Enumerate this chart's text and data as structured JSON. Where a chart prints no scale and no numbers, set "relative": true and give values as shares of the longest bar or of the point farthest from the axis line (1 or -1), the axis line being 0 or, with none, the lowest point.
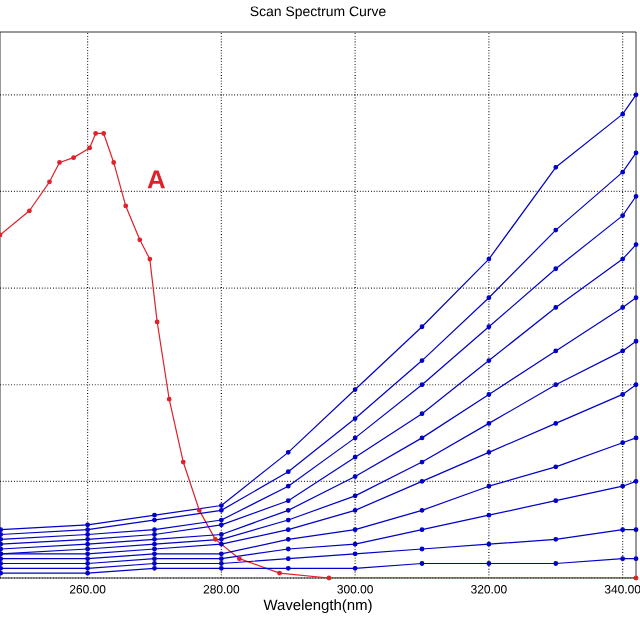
{
  "chart_data": {
    "type": "line",
    "title": "Scan Spectrum Curve",
    "xlabel": "Wavelength(nm)",
    "relative": true,
    "grid": true,
    "marker": "circle",
    "line_style": "solid",
    "xlim": [
      246.9,
      342
    ],
    "xticks": [
      {
        "value": 260,
        "label": "260.00"
      },
      {
        "value": 280,
        "label": "280.00"
      },
      {
        "value": 300,
        "label": "300.00"
      },
      {
        "value": 320,
        "label": "320.00"
      },
      {
        "value": 340,
        "label": "340.00"
      }
    ],
    "x": [
      247,
      260,
      270,
      280,
      290,
      300,
      310,
      320,
      330,
      340,
      342
    ],
    "annotations": [
      "A"
    ],
    "series": [
      {
        "color": "#e0202a",
        "x": [
          246.9,
          251.3,
          254.3,
          255.8,
          257.9,
          260.3,
          261.2,
          262.4,
          263.9,
          265.7,
          267.8,
          269.3,
          270.4,
          272.2,
          274.3,
          276.7,
          279.1,
          282.7,
          288.7,
          296.1,
          342
        ],
        "values": [
          0.71,
          0.76,
          0.82,
          0.86,
          0.87,
          0.89,
          0.92,
          0.92,
          0.86,
          0.77,
          0.7,
          0.66,
          0.53,
          0.37,
          0.24,
          0.14,
          0.08,
          0.04,
          0.01,
          0,
          0
        ]
      },
      {
        "color": "#0000c8",
        "values": [
          0.1,
          0.11,
          0.13,
          0.15,
          0.26,
          0.39,
          0.52,
          0.66,
          0.85,
          0.96,
          1.0
        ]
      },
      {
        "color": "#0000c8",
        "values": [
          0.09,
          0.1,
          0.12,
          0.14,
          0.22,
          0.33,
          0.45,
          0.58,
          0.72,
          0.84,
          0.88
        ]
      },
      {
        "color": "#0000c8",
        "values": [
          0.08,
          0.09,
          0.1,
          0.12,
          0.19,
          0.29,
          0.4,
          0.52,
          0.64,
          0.75,
          0.79
        ]
      },
      {
        "color": "#0000c8",
        "values": [
          0.07,
          0.08,
          0.09,
          0.11,
          0.16,
          0.25,
          0.34,
          0.45,
          0.56,
          0.66,
          0.69
        ]
      },
      {
        "color": "#0000c8",
        "values": [
          0.06,
          0.07,
          0.08,
          0.09,
          0.14,
          0.21,
          0.29,
          0.38,
          0.47,
          0.56,
          0.58
        ]
      },
      {
        "color": "#0000c8",
        "values": [
          0.05,
          0.06,
          0.07,
          0.08,
          0.12,
          0.17,
          0.24,
          0.32,
          0.4,
          0.47,
          0.49
        ]
      },
      {
        "color": "#0000c8",
        "values": [
          0.05,
          0.05,
          0.06,
          0.07,
          0.1,
          0.14,
          0.2,
          0.26,
          0.32,
          0.38,
          0.4
        ]
      },
      {
        "color": "#0000c8",
        "values": [
          0.04,
          0.04,
          0.05,
          0.05,
          0.08,
          0.1,
          0.14,
          0.19,
          0.23,
          0.28,
          0.29
        ]
      },
      {
        "color": "#0000c8",
        "values": [
          0.03,
          0.03,
          0.04,
          0.04,
          0.06,
          0.07,
          0.1,
          0.13,
          0.16,
          0.19,
          0.2
        ]
      },
      {
        "color": "#0000c8",
        "values": [
          0.02,
          0.02,
          0.03,
          0.03,
          0.04,
          0.05,
          0.06,
          0.07,
          0.08,
          0.1,
          0.1
        ]
      },
      {
        "color": "#0000c8",
        "values": [
          0.01,
          0.01,
          0.02,
          0.02,
          0.02,
          0.02,
          0.03,
          0.03,
          0.03,
          0.04,
          0.04
        ]
      }
    ]
  }
}
